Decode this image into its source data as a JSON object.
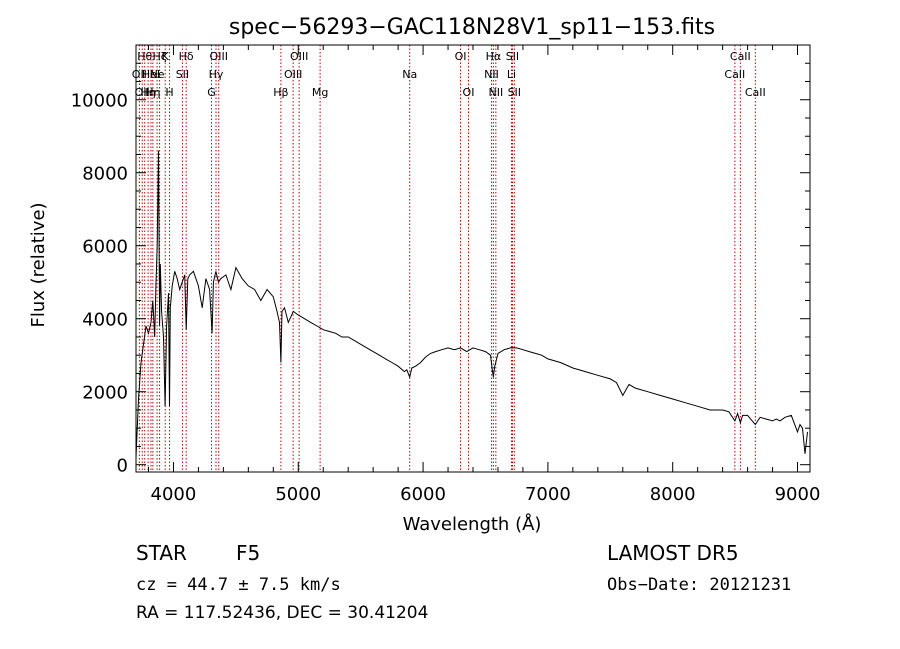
{
  "chart_data": {
    "type": "line",
    "title": "spec−56293−GAC118N28V1_sp11−153.fits",
    "xlabel": "Wavelength (Å)",
    "ylabel": "Flux (relative)",
    "xlim": [
      3700,
      9100
    ],
    "ylim": [
      -200,
      11500
    ],
    "xticks": [
      4000,
      5000,
      6000,
      7000,
      8000,
      9000
    ],
    "yticks": [
      0,
      2000,
      4000,
      6000,
      8000,
      10000
    ],
    "grid": false,
    "series": [
      {
        "x": [
          3700,
          3720,
          3740,
          3760,
          3780,
          3800,
          3820,
          3835,
          3850,
          3860,
          3870,
          3880,
          3889,
          3895,
          3905,
          3920,
          3933,
          3945,
          3960,
          3968,
          3975,
          3990,
          4010,
          4030,
          4050,
          4070,
          4090,
          4102,
          4115,
          4130,
          4160,
          4200,
          4230,
          4260,
          4290,
          4310,
          4320,
          4340,
          4360,
          4380,
          4420,
          4460,
          4500,
          4550,
          4600,
          4650,
          4700,
          4750,
          4800,
          4830,
          4850,
          4861,
          4870,
          4890,
          4920,
          4960,
          5000,
          5050,
          5100,
          5150,
          5200,
          5250,
          5300,
          5350,
          5400,
          5450,
          5500,
          5550,
          5600,
          5650,
          5700,
          5750,
          5800,
          5850,
          5870,
          5893,
          5910,
          5940,
          5980,
          6020,
          6060,
          6100,
          6150,
          6200,
          6250,
          6300,
          6350,
          6400,
          6450,
          6500,
          6540,
          6555,
          6563,
          6575,
          6600,
          6650,
          6700,
          6750,
          6800,
          6850,
          6900,
          6950,
          7000,
          7100,
          7200,
          7300,
          7400,
          7500,
          7550,
          7600,
          7650,
          7700,
          7800,
          7900,
          8000,
          8100,
          8200,
          8300,
          8400,
          8450,
          8498,
          8520,
          8542,
          8560,
          8600,
          8662,
          8700,
          8750,
          8800,
          8830,
          8860,
          8900,
          8950,
          9000,
          9020,
          9040,
          9060,
          9080
        ],
        "y": [
          200,
          1800,
          2800,
          3300,
          3800,
          3600,
          3900,
          4500,
          3500,
          5000,
          6000,
          8600,
          3800,
          5500,
          4200,
          3500,
          1600,
          3800,
          4700,
          1600,
          4300,
          4900,
          5300,
          5100,
          4800,
          5000,
          5200,
          3700,
          5100,
          5200,
          5300,
          4900,
          4300,
          5100,
          4800,
          3600,
          5000,
          5300,
          5000,
          5100,
          5200,
          4800,
          5400,
          5100,
          4900,
          4800,
          4500,
          4800,
          4600,
          4200,
          3900,
          2800,
          4200,
          4300,
          3900,
          4200,
          4100,
          4000,
          3900,
          3800,
          3700,
          3650,
          3600,
          3500,
          3500,
          3400,
          3300,
          3200,
          3100,
          3000,
          2900,
          2800,
          2700,
          2550,
          2600,
          2400,
          2650,
          2700,
          2800,
          2950,
          3050,
          3100,
          3150,
          3200,
          3150,
          3200,
          3100,
          3200,
          3150,
          3100,
          3000,
          2600,
          2400,
          2700,
          3050,
          3150,
          3200,
          3200,
          3150,
          3100,
          3050,
          3000,
          2900,
          2800,
          2650,
          2550,
          2450,
          2350,
          2250,
          1900,
          2200,
          2100,
          2000,
          1900,
          1800,
          1700,
          1600,
          1500,
          1500,
          1450,
          1200,
          1400,
          1150,
          1350,
          1350,
          1100,
          1300,
          1250,
          1200,
          1250,
          1200,
          1300,
          1350,
          900,
          1100,
          1000,
          300,
          900
        ]
      }
    ],
    "lines": [
      {
        "wave": 3727,
        "label": "OII",
        "row": 1
      },
      {
        "wave": 3750,
        "label": "OII",
        "row": 2
      },
      {
        "wave": 3770,
        "label": "Hθ",
        "row": 0
      },
      {
        "wave": 3797,
        "label": "Hη",
        "row": 2
      },
      {
        "wave": 3820,
        "label": "HeI",
        "row": 1
      },
      {
        "wave": 3835,
        "label": "Hη",
        "row": 2
      },
      {
        "wave": 3869,
        "label": "Ne",
        "row": 1
      },
      {
        "wave": 3889,
        "label": "Hζ",
        "row": 0
      },
      {
        "wave": 3934,
        "label": "K",
        "row": 0
      },
      {
        "wave": 3969,
        "label": "H",
        "row": 2
      },
      {
        "wave": 4072,
        "label": "SII",
        "row": 1
      },
      {
        "wave": 4102,
        "label": "Hδ",
        "row": 0
      },
      {
        "wave": 4305,
        "label": "G",
        "row": 2
      },
      {
        "wave": 4341,
        "label": "Hγ",
        "row": 1
      },
      {
        "wave": 4363,
        "label": "OIII",
        "row": 0
      },
      {
        "wave": 4861,
        "label": "Hβ",
        "row": 2
      },
      {
        "wave": 4959,
        "label": "OIII",
        "row": 1
      },
      {
        "wave": 5007,
        "label": "OIII",
        "row": 0
      },
      {
        "wave": 5175,
        "label": "Mg",
        "row": 2
      },
      {
        "wave": 5893,
        "label": "Na",
        "row": 1
      },
      {
        "wave": 6300,
        "label": "OI",
        "row": 0
      },
      {
        "wave": 6364,
        "label": "OI",
        "row": 2
      },
      {
        "wave": 6548,
        "label": "NII",
        "row": 1
      },
      {
        "wave": 6563,
        "label": "Hα",
        "row": 0
      },
      {
        "wave": 6583,
        "label": "NII",
        "row": 2
      },
      {
        "wave": 6708,
        "label": "Li",
        "row": 1
      },
      {
        "wave": 6716,
        "label": "SII",
        "row": 0
      },
      {
        "wave": 6731,
        "label": "SII",
        "row": 2
      },
      {
        "wave": 8498,
        "label": "CaII",
        "row": 1
      },
      {
        "wave": 8542,
        "label": "CaII",
        "row": 0
      },
      {
        "wave": 8662,
        "label": "CaII",
        "row": 2
      }
    ]
  },
  "info": {
    "object_type": "STAR",
    "subclass": "F5",
    "survey": "LAMOST DR5",
    "redshift": "cz = 44.7 ± 7.5 km/s",
    "obs_date": "Obs−Date: 20121231",
    "coords": "RA = 117.52436, DEC =  30.41204"
  }
}
